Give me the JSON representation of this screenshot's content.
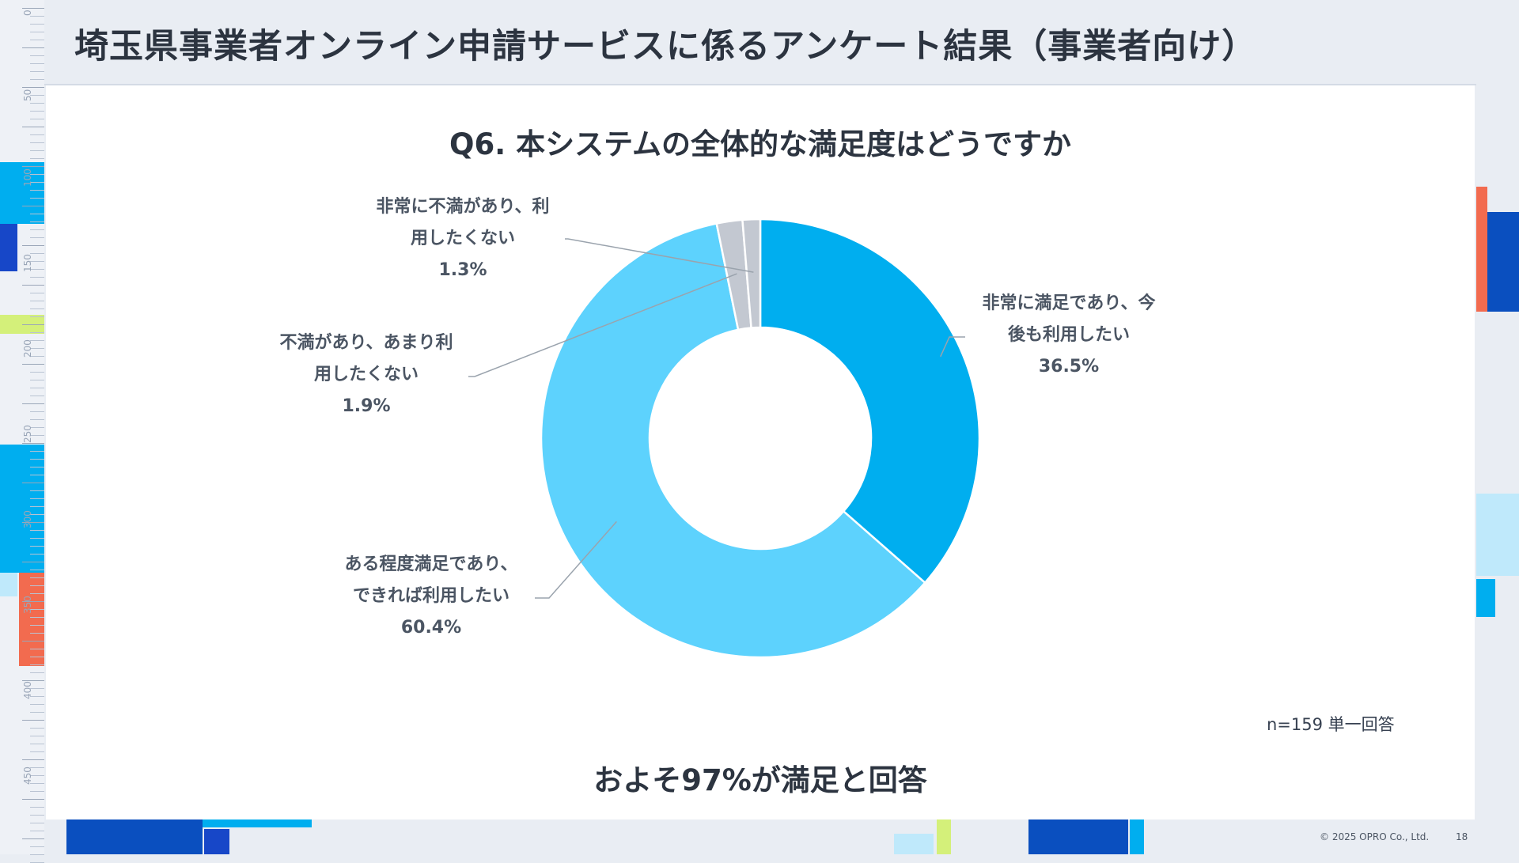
{
  "header": {
    "title": "埼玉県事業者オンライン申請サービスに係るアンケート結果（事業者向け）"
  },
  "ruler": {
    "labels": [
      "0",
      "50",
      "100",
      "150",
      "200",
      "250",
      "300",
      "350",
      "400",
      "450"
    ]
  },
  "chart_data": {
    "type": "pie",
    "donut": true,
    "title": "Q6. 本システムの全体的な満足度はどうですか",
    "slices": [
      {
        "name_line1": "非常に満足であり、今",
        "name_line2": "後も利用したい",
        "value": 36.5,
        "value_label": "36.5%",
        "color": "#00aeef"
      },
      {
        "name_line1": "ある程度満足であり、",
        "name_line2": "できれば利用したい",
        "value": 60.4,
        "value_label": "60.4%",
        "color": "#5dd2fd"
      },
      {
        "name_line1": "不満があり、あまり利",
        "name_line2": "用したくない",
        "value": 1.9,
        "value_label": "1.9%",
        "color": "#c3c8d1"
      },
      {
        "name_line1": "非常に不満があり、利",
        "name_line2": "用したくない",
        "value": 1.3,
        "value_label": "1.3%",
        "color": "#c3c8d1"
      }
    ],
    "note": "n=159 単一回答",
    "summary": "およそ97%が満足と回答"
  },
  "footer": {
    "copyright": "© 2025 OPRO Co., Ltd.",
    "page_number": "18"
  },
  "colors": {
    "background": "#e9edf3",
    "accent_blue": "#00aeef",
    "light_blue": "#5dd2fd",
    "navy": "#0a4fbf",
    "coral": "#f26b4f",
    "lime": "#d4f07a"
  }
}
